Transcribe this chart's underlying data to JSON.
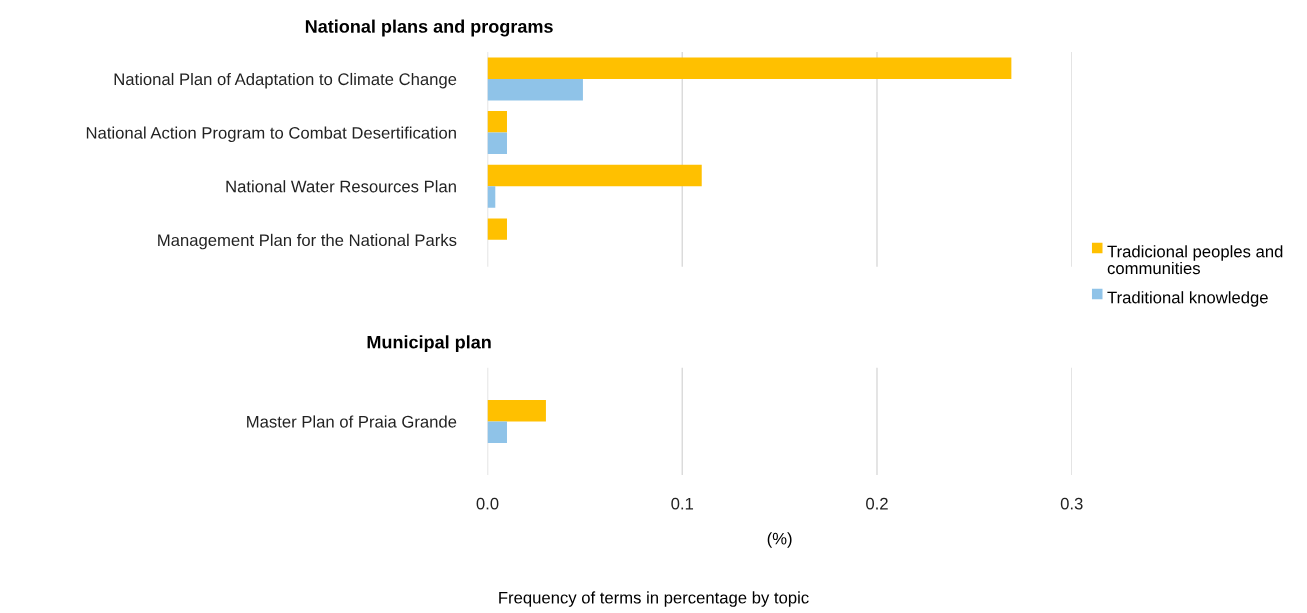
{
  "chart_data": [
    {
      "type": "bar",
      "orientation": "horizontal",
      "title": "National plans and programs",
      "categories": [
        "National Plan of Adaptation to Climate Change",
        "National Action Program to Combat Desertification",
        "National Water Resources Plan",
        "Management Plan for the National Parks"
      ],
      "series": [
        {
          "name": "Tradicional peoples and communities",
          "color": "#ffc000",
          "values": [
            0.269,
            0.01,
            0.11,
            0.01
          ]
        },
        {
          "name": "Traditional knowledge",
          "color": "#8fc3e8",
          "values": [
            0.049,
            0.01,
            0.004,
            0
          ]
        }
      ],
      "xlim": [
        0,
        0.3
      ],
      "xticks": [
        0,
        0.1,
        0.2,
        0.3
      ],
      "tick_labels": "y",
      "grid": "x",
      "legend": "bottom right"
    },
    {
      "type": "bar",
      "orientation": "horizontal",
      "title": "Municipal plan",
      "categories": [
        "Master Plan of Praia Grande"
      ],
      "series": [
        {
          "name": "Tradicional peoples and communities",
          "color": "#ffc000",
          "values": [
            0.03
          ]
        },
        {
          "name": "Traditional knowledge",
          "color": "#8fc3e8",
          "values": [
            0.01
          ]
        }
      ],
      "xlim": [
        0,
        0.3
      ],
      "xticks": [
        {
          "value": 0,
          "label": "0.0"
        },
        0.1,
        0.2,
        0.3
      ],
      "xlabel": "(%)",
      "grid": "x",
      "annotations": [
        "Frequency of terms in percentage by topic"
      ]
    }
  ]
}
